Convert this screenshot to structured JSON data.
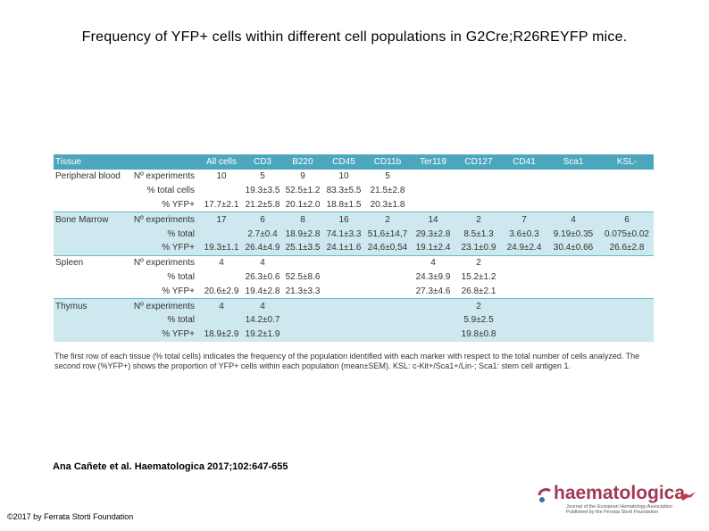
{
  "title": "Frequency of YFP+ cells within different cell populations in G2Cre;R26REYFP mice.",
  "table": {
    "header": [
      "Tissue",
      "",
      "All cells",
      "CD3",
      "B220",
      "CD45",
      "CD11b",
      "Ter119",
      "CD127",
      "CD41",
      "Sca1",
      "KSL-"
    ],
    "rows": [
      {
        "tissue": "Peripheral blood",
        "param": "Nº experiments",
        "cells": [
          "10",
          "5",
          "9",
          "10",
          "5",
          "",
          "",
          "",
          "",
          ""
        ]
      },
      {
        "tissue": "",
        "param": "% total cells",
        "cells": [
          "",
          "19.3±3.5",
          "52.5±1.2",
          "83.3±5.5",
          "21.5±2.8",
          "",
          "",
          "",
          "",
          ""
        ]
      },
      {
        "tissue": "",
        "param": "% YFP+",
        "cells": [
          "17.7±2.1",
          "21.2±5.8",
          "20.1±2.0",
          "18.8±1.5",
          "20.3±1.8",
          "",
          "",
          "",
          "",
          ""
        ]
      },
      {
        "tissue": "Bone Marrow",
        "param": "Nº experiments",
        "cells": [
          "17",
          "6",
          "8",
          "16",
          "2",
          "14",
          "2",
          "7",
          "4",
          "6"
        ]
      },
      {
        "tissue": "",
        "param": "% total",
        "cells": [
          "",
          "2.7±0.4",
          "18.9±2.8",
          "74.1±3.3",
          "51,6±14,7",
          "29.3±2.8",
          "8.5±1.3",
          "3.6±0.3",
          "9.19±0.35",
          "0.075±0.02"
        ]
      },
      {
        "tissue": "",
        "param": "% YFP+",
        "cells": [
          "19.3±1.1",
          "26.4±4.9",
          "25.1±3.5",
          "24.1±1.6",
          "24,6±0,54",
          "19.1±2.4",
          "23.1±0.9",
          "24.9±2.4",
          "30.4±0.66",
          "26.6±2.8"
        ]
      },
      {
        "tissue": "Spleen",
        "param": "Nº experiments",
        "cells": [
          "4",
          "4",
          "",
          "",
          "",
          "4",
          "2",
          "",
          "",
          ""
        ]
      },
      {
        "tissue": "",
        "param": "% total",
        "cells": [
          "",
          "26.3±0.6",
          "52.5±8.6",
          "",
          "",
          "24.3±9.9",
          "15.2±1.2",
          "",
          "",
          ""
        ]
      },
      {
        "tissue": "",
        "param": "% YFP+",
        "cells": [
          "20.6±2.9",
          "19.4±2.8",
          "21.3±3.3",
          "",
          "",
          "27.3±4.6",
          "26.8±2.1",
          "",
          "",
          ""
        ]
      },
      {
        "tissue": "Thymus",
        "param": "Nº experiments",
        "cells": [
          "4",
          "4",
          "",
          "",
          "",
          "",
          "2",
          "",
          "",
          ""
        ]
      },
      {
        "tissue": "",
        "param": "% total",
        "cells": [
          "",
          "14.2±0.7",
          "",
          "",
          "",
          "",
          "5.9±2.5",
          "",
          "",
          ""
        ]
      },
      {
        "tissue": "",
        "param": "% YFP+",
        "cells": [
          "18.9±2.9",
          "19.2±1.9",
          "",
          "",
          "",
          "",
          "19.8±0.8",
          "",
          "",
          ""
        ]
      }
    ]
  },
  "footnote": "The first row of each tissue (% total cells) indicates the frequency of the population identified with each marker with respect to the total number of cells analyzed. The second row (%YFP+) shows the proportion of YFP+ cells within each population (mean±SEM). KSL: c-Kit+/Sca1+/Lin-; Sca1: stem cell antigen 1.",
  "citation": "Ana Cañete et al. Haematologica 2017;102:647-655",
  "copyright": "©2017 by Ferrata Storti Foundation",
  "logo": {
    "word": "haematologica",
    "sub_line1": "Journal of the European Hematology Association",
    "sub_line2": "Published by the Ferrata Storti Foundation"
  },
  "colors": {
    "header": "#4ca6bd",
    "band": "#cde8ee",
    "logo": "#a33a54"
  }
}
